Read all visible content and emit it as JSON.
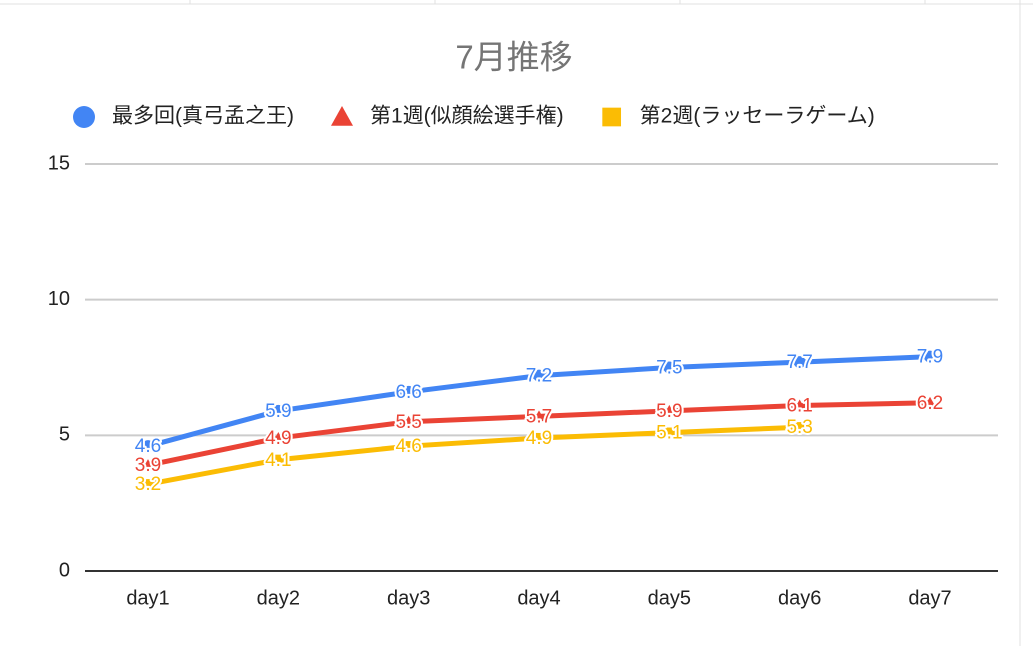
{
  "chart_data": {
    "type": "line",
    "title": "7月推移",
    "categories": [
      "day1",
      "day2",
      "day3",
      "day4",
      "day5",
      "day6",
      "day7"
    ],
    "series": [
      {
        "name": "最多回(真弓孟之王)",
        "color": "#4285f4",
        "marker": "circle",
        "values": [
          4.6,
          5.9,
          6.6,
          7.2,
          7.5,
          7.7,
          7.9
        ]
      },
      {
        "name": "第1週(似顔絵選手権)",
        "color": "#ea4335",
        "marker": "triangle",
        "values": [
          3.9,
          4.9,
          5.5,
          5.7,
          5.9,
          6.1,
          6.2
        ]
      },
      {
        "name": "第2週(ラッセーラゲーム)",
        "color": "#fbbc04",
        "marker": "square",
        "values": [
          3.2,
          4.1,
          4.6,
          4.9,
          5.1,
          5.3,
          null
        ]
      }
    ],
    "ylim": [
      0,
      15
    ],
    "yticks": [
      0,
      5,
      10,
      15
    ],
    "grid": true,
    "legend": "top"
  }
}
